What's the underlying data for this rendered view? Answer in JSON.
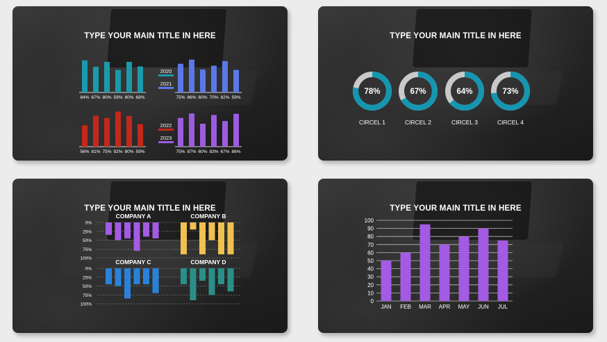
{
  "slides": [
    {
      "title": "TYPE YOUR MAIN TITLE IN HERE",
      "groups": [
        {
          "label": "2020",
          "values": [
            84,
            67,
            80,
            59,
            80,
            68
          ],
          "color": "#1b9aab"
        },
        {
          "label": "2021",
          "values": [
            75,
            86,
            60,
            70,
            82,
            59
          ],
          "color": "#5b79e6"
        },
        {
          "label": "2022",
          "values": [
            56,
            81,
            75,
            92,
            80,
            59
          ],
          "color": "#c4281b"
        },
        {
          "label": "2023",
          "values": [
            75,
            87,
            60,
            83,
            67,
            86
          ],
          "color": "#9d5ce0"
        }
      ]
    },
    {
      "title": "TYPE YOUR MAIN TITLE IN HERE",
      "circles": [
        {
          "value": 78,
          "label": "CIRCEL 1"
        },
        {
          "value": 67,
          "label": "CIRCEL 2"
        },
        {
          "value": 64,
          "label": "CIRCEL 3"
        },
        {
          "value": 73,
          "label": "CIRCEL 4"
        }
      ],
      "ring_color": "#1596b0",
      "track_color": "#c9c9c9"
    },
    {
      "title": "TYPE YOUR MAIN TITLE IN HERE",
      "axis_labels": [
        "0%",
        "25%",
        "50%",
        "75%",
        "100%"
      ],
      "companies": [
        {
          "name": "COMPANY A",
          "color": "#a35be3",
          "values": [
            35,
            50,
            45,
            80,
            40,
            45
          ]
        },
        {
          "name": "COMPANY B",
          "color": "#f0c050",
          "values": [
            90,
            20,
            90,
            50,
            90,
            90
          ]
        },
        {
          "name": "COMPANY C",
          "color": "#2a82d8",
          "values": [
            45,
            50,
            85,
            45,
            45,
            70
          ]
        },
        {
          "name": "COMPANY D",
          "color": "#2a8f88",
          "values": [
            45,
            90,
            35,
            75,
            45,
            65
          ]
        }
      ]
    },
    {
      "title": "TYPE YOUR MAIN TITLE IN HERE",
      "chart_data": {
        "type": "bar",
        "categories": [
          "JAN",
          "FEB",
          "MAR",
          "APR",
          "MAY",
          "JUN",
          "JUL"
        ],
        "values": [
          50,
          60,
          95,
          70,
          80,
          90,
          75
        ],
        "yticks": [
          0,
          10,
          20,
          30,
          40,
          50,
          60,
          70,
          80,
          90,
          100
        ],
        "ylim": [
          0,
          100
        ],
        "grid": true,
        "color": "#a35be3"
      }
    }
  ]
}
